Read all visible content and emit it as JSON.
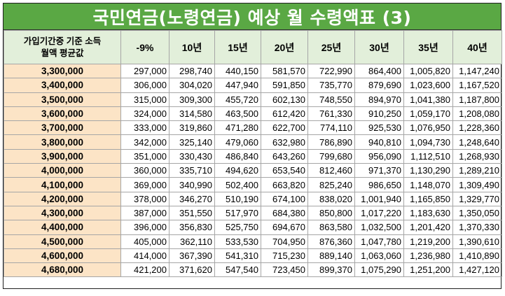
{
  "title": "국민연금(노령연금) 예상 월 수령액표 (3)",
  "header": {
    "income_line1": "가입기간중 기준 소득",
    "income_line2": "월액 평균값",
    "columns": [
      "-9%",
      "10년",
      "15년",
      "20년",
      "25년",
      "30년",
      "35년",
      "40년"
    ]
  },
  "rows": [
    {
      "income": "3,300,000",
      "values": [
        "297,000",
        "298,740",
        "440,150",
        "581,570",
        "722,990",
        "864,400",
        "1,005,820",
        "1,147,240"
      ]
    },
    {
      "income": "3,400,000",
      "values": [
        "306,000",
        "304,020",
        "447,940",
        "591,850",
        "735,770",
        "879,690",
        "1,023,600",
        "1,167,520"
      ]
    },
    {
      "income": "3,500,000",
      "values": [
        "315,000",
        "309,300",
        "455,720",
        "602,130",
        "748,550",
        "894,970",
        "1,041,380",
        "1,187,800"
      ]
    },
    {
      "income": "3,600,000",
      "values": [
        "324,000",
        "314,580",
        "463,500",
        "612,420",
        "761,330",
        "910,250",
        "1,059,170",
        "1,208,080"
      ]
    },
    {
      "income": "3,700,000",
      "values": [
        "333,000",
        "319,860",
        "471,280",
        "622,700",
        "774,110",
        "925,530",
        "1,076,950",
        "1,228,360"
      ]
    },
    {
      "income": "3,800,000",
      "values": [
        "342,000",
        "325,140",
        "479,060",
        "632,980",
        "786,890",
        "940,810",
        "1,094,730",
        "1,248,640"
      ]
    },
    {
      "income": "3,900,000",
      "values": [
        "351,000",
        "330,430",
        "486,840",
        "643,260",
        "799,680",
        "956,090",
        "1,112,510",
        "1,268,930"
      ]
    },
    {
      "income": "4,000,000",
      "values": [
        "360,000",
        "335,710",
        "494,620",
        "653,540",
        "812,460",
        "971,370",
        "1,130,290",
        "1,289,210"
      ]
    },
    {
      "income": "4,100,000",
      "values": [
        "369,000",
        "340,990",
        "502,400",
        "663,820",
        "825,240",
        "986,650",
        "1,148,070",
        "1,309,490"
      ]
    },
    {
      "income": "4,200,000",
      "values": [
        "378,000",
        "346,270",
        "510,190",
        "674,100",
        "838,020",
        "1,001,940",
        "1,165,850",
        "1,329,770"
      ]
    },
    {
      "income": "4,300,000",
      "values": [
        "387,000",
        "351,550",
        "517,970",
        "684,380",
        "850,800",
        "1,017,220",
        "1,183,630",
        "1,350,050"
      ]
    },
    {
      "income": "4,400,000",
      "values": [
        "396,000",
        "356,830",
        "525,750",
        "694,670",
        "863,580",
        "1,032,500",
        "1,201,420",
        "1,370,330"
      ]
    },
    {
      "income": "4,500,000",
      "values": [
        "405,000",
        "362,110",
        "533,530",
        "704,950",
        "876,360",
        "1,047,780",
        "1,219,200",
        "1,390,610"
      ]
    },
    {
      "income": "4,600,000",
      "values": [
        "414,000",
        "367,390",
        "541,310",
        "715,230",
        "889,140",
        "1,063,060",
        "1,236,980",
        "1,410,890"
      ]
    },
    {
      "income": "4,680,000",
      "values": [
        "421,200",
        "371,620",
        "547,540",
        "723,450",
        "899,370",
        "1,075,290",
        "1,251,200",
        "1,427,120"
      ]
    }
  ],
  "colors": {
    "title_bg": "#5aa844",
    "header_bg": "#e2efda",
    "income_bg": "#fce4c6"
  }
}
